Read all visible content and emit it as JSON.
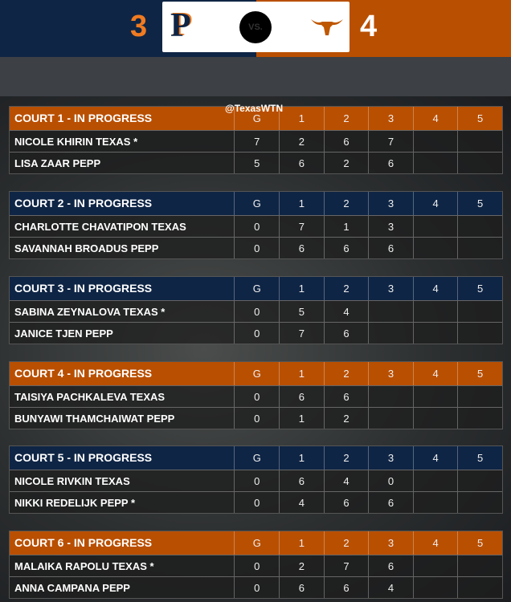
{
  "header": {
    "home_score": "3",
    "away_score": "4",
    "vs_label": "VS.",
    "home_logo": "P",
    "colors": {
      "home": "#0f2545",
      "away": "#b94f00",
      "home_score": "#f07b21"
    }
  },
  "watermark": "@TexasWTN",
  "columns": [
    "G",
    "1",
    "2",
    "3",
    "4",
    "5"
  ],
  "courts": [
    {
      "title": "COURT 1 - IN PROGRESS",
      "color": "orange",
      "players": [
        {
          "name": "NICOLE KHIRIN TEXAS *",
          "scores": [
            "7",
            "2",
            "6",
            "7",
            "",
            ""
          ]
        },
        {
          "name": "LISA ZAAR PEPP",
          "scores": [
            "5",
            "6",
            "2",
            "6",
            "",
            ""
          ]
        }
      ]
    },
    {
      "title": "COURT 2 - IN PROGRESS",
      "color": "navy",
      "players": [
        {
          "name": "CHARLOTTE CHAVATIPON TEXAS",
          "scores": [
            "0",
            "7",
            "1",
            "3",
            "",
            ""
          ]
        },
        {
          "name": "SAVANNAH BROADUS PEPP",
          "scores": [
            "0",
            "6",
            "6",
            "6",
            "",
            ""
          ]
        }
      ]
    },
    {
      "title": "COURT 3 - IN PROGRESS",
      "color": "navy",
      "players": [
        {
          "name": "SABINA ZEYNALOVA TEXAS *",
          "scores": [
            "0",
            "5",
            "4",
            "",
            "",
            ""
          ]
        },
        {
          "name": "JANICE TJEN PEPP",
          "scores": [
            "0",
            "7",
            "6",
            "",
            "",
            ""
          ]
        }
      ]
    },
    {
      "title": "COURT 4 - IN PROGRESS",
      "color": "orange",
      "players": [
        {
          "name": "TAISIYA PACHKALEVA TEXAS",
          "scores": [
            "0",
            "6",
            "6",
            "",
            "",
            ""
          ]
        },
        {
          "name": "BUNYAWI THAMCHAIWAT PEPP",
          "scores": [
            "0",
            "1",
            "2",
            "",
            "",
            ""
          ]
        }
      ]
    },
    {
      "title": "COURT 5 - IN PROGRESS",
      "color": "navy",
      "players": [
        {
          "name": "NICOLE RIVKIN TEXAS",
          "scores": [
            "0",
            "6",
            "4",
            "0",
            "",
            ""
          ]
        },
        {
          "name": "NIKKI REDELIJK PEPP *",
          "scores": [
            "0",
            "4",
            "6",
            "6",
            "",
            ""
          ]
        }
      ]
    },
    {
      "title": "COURT 6 - IN PROGRESS",
      "color": "orange",
      "players": [
        {
          "name": "MALAIKA RAPOLU TEXAS *",
          "scores": [
            "0",
            "2",
            "7",
            "6",
            "",
            ""
          ]
        },
        {
          "name": "ANNA CAMPANA PEPP",
          "scores": [
            "0",
            "6",
            "6",
            "4",
            "",
            ""
          ]
        }
      ]
    }
  ]
}
